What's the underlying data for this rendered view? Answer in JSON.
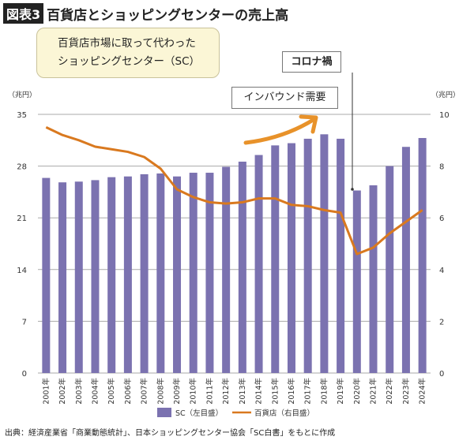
{
  "header": {
    "figure_label": "図表3",
    "title": "百貨店とショッピングセンターの売上高"
  },
  "annotations": {
    "callout_line1": "百貨店市場に取って代わった",
    "callout_line2": "ショッピングセンター（SC）",
    "corona": "コロナ禍",
    "inbound": "インバウンド需要"
  },
  "source": "出典：経済産業省「商業動態統計」、日本ショッピングセンター協会「SC白書」をもとに作成",
  "colors": {
    "bar": "#7b72b0",
    "line": "#d9791f",
    "arrow": "#e8922a",
    "grid": "#aaaaaa"
  },
  "chart_data": {
    "type": "bar+line",
    "categories": [
      "2001年",
      "2002年",
      "2003年",
      "2004年",
      "2005年",
      "2006年",
      "2007年",
      "2008年",
      "2009年",
      "2010年",
      "2011年",
      "2012年",
      "2013年",
      "2014年",
      "2015年",
      "2016年",
      "2017年",
      "2018年",
      "2019年",
      "2020年",
      "2021年",
      "2022年",
      "2023年",
      "2024年"
    ],
    "left_unit": "（兆円）",
    "right_unit": "（兆円）",
    "left_ticks": [
      0,
      7,
      14,
      21,
      28,
      35
    ],
    "left_ylim": [
      0,
      35
    ],
    "right_ticks": [
      0,
      2,
      4,
      6,
      8,
      10
    ],
    "right_ylim": [
      0,
      10
    ],
    "grid": true,
    "legend_position": "bottom",
    "series": [
      {
        "name": "SC（左目盛）",
        "type": "bar",
        "axis": "left",
        "values": [
          26.4,
          25.8,
          25.9,
          26.1,
          26.5,
          26.6,
          26.9,
          27.0,
          26.6,
          27.1,
          27.1,
          27.9,
          28.6,
          29.5,
          30.8,
          31.1,
          31.7,
          32.3,
          31.7,
          24.7,
          25.4,
          28.0,
          30.6,
          31.8
        ]
      },
      {
        "name": "百貨店（右目盛）",
        "type": "line",
        "axis": "right",
        "values": [
          9.5,
          9.2,
          9.0,
          8.75,
          8.65,
          8.55,
          8.35,
          7.9,
          7.1,
          6.8,
          6.6,
          6.55,
          6.6,
          6.75,
          6.75,
          6.5,
          6.45,
          6.3,
          6.2,
          4.6,
          4.85,
          5.4,
          5.85,
          6.3
        ]
      }
    ]
  }
}
